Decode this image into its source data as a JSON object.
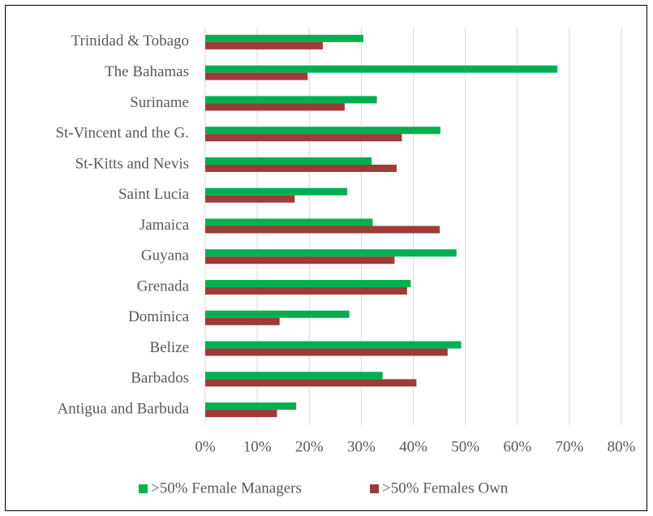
{
  "chart_data": {
    "type": "hbar",
    "categories": [
      "Antigua and Barbuda",
      "Barbados",
      "Belize",
      "Dominica",
      "Grenada",
      "Guyana",
      "Jamaica",
      "Saint Lucia",
      "St-Kitts and Nevis",
      "St-Vincent and the G.",
      "Suriname",
      "The Bahamas",
      "Trinidad & Tobago"
    ],
    "series": [
      {
        "name": ">50% Female Managers",
        "color": "#00b050",
        "values": [
          17.5,
          34.1,
          49.2,
          27.7,
          39.5,
          48.3,
          32.2,
          27.3,
          32.0,
          45.2,
          33.0,
          67.7,
          30.4
        ]
      },
      {
        "name": ">50% Females Own",
        "color": "#9e3a38",
        "values": [
          13.8,
          40.6,
          46.6,
          14.3,
          38.8,
          36.4,
          45.1,
          17.2,
          36.8,
          37.8,
          26.8,
          19.7,
          22.6
        ]
      }
    ],
    "xlim": [
      0,
      80
    ],
    "xticks": [
      {
        "value": 0,
        "label": "0%"
      },
      {
        "value": 10,
        "label": "10%"
      },
      {
        "value": 20,
        "label": "20%"
      },
      {
        "value": 30,
        "label": "30%"
      },
      {
        "value": 40,
        "label": "40%"
      },
      {
        "value": 50,
        "label": "50%"
      },
      {
        "value": 60,
        "label": "60%"
      },
      {
        "value": 70,
        "label": "70%"
      },
      {
        "value": 80,
        "label": "80%"
      }
    ],
    "grid": true,
    "legend": "bottom"
  }
}
